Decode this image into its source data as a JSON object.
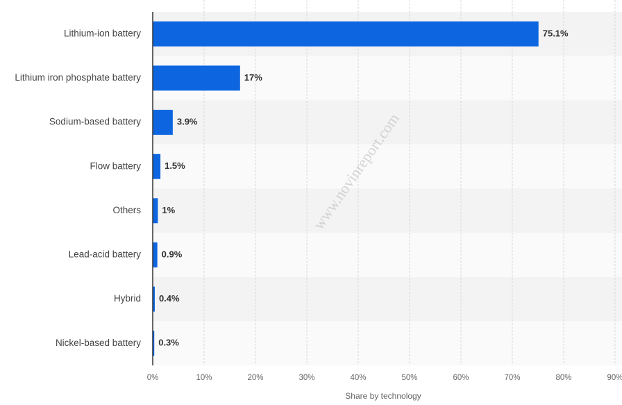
{
  "chart_data": {
    "type": "bar",
    "orientation": "horizontal",
    "categories": [
      "Lithium-ion battery",
      "Lithium iron phosphate battery",
      "Sodium-based battery",
      "Flow battery",
      "Others",
      "Lead-acid battery",
      "Hybrid",
      "Nickel-based battery"
    ],
    "values": [
      75.1,
      17,
      3.9,
      1.5,
      1,
      0.9,
      0.4,
      0.3
    ],
    "value_labels": [
      "75.1%",
      "17%",
      "3.9%",
      "1.5%",
      "1%",
      "0.9%",
      "0.4%",
      "0.3%"
    ],
    "color": "#0d66e0",
    "xlim": [
      0,
      90
    ],
    "xticks": [
      {
        "value": 0,
        "label": "0%"
      },
      {
        "value": 10,
        "label": "10%"
      },
      {
        "value": 20,
        "label": "20%"
      },
      {
        "value": 30,
        "label": "30%"
      },
      {
        "value": 40,
        "label": "40%"
      },
      {
        "value": 50,
        "label": "50%"
      },
      {
        "value": 60,
        "label": "60%"
      },
      {
        "value": 70,
        "label": "70%"
      },
      {
        "value": 80,
        "label": "80%"
      },
      {
        "value": 90,
        "label": "90%"
      }
    ],
    "x_label": "Share by technology",
    "grid": true,
    "watermark": "www.novinreport.com"
  }
}
